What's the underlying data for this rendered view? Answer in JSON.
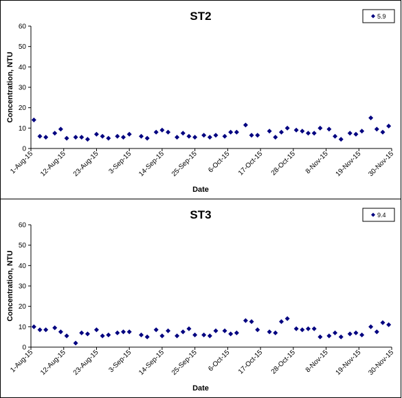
{
  "chart_data": [
    {
      "type": "scatter",
      "title": "ST2",
      "xlabel": "Date",
      "ylabel": "Concentration, NTU",
      "ylim": [
        0,
        60
      ],
      "yticks": [
        "0",
        "10",
        "20",
        "30",
        "40",
        "50",
        "60"
      ],
      "xlim": [
        "2015-08-01",
        "2015-11-30"
      ],
      "xticks": [
        "1-Aug-15",
        "12-Aug-15",
        "23-Aug-15",
        "3-Sep-15",
        "14-Sep-15",
        "25-Sep-15",
        "6-Oct-15",
        "17-Oct-15",
        "28-Oct-15",
        "8-Nov-15",
        "19-Nov-15",
        "30-Nov-15"
      ],
      "grid": false,
      "legend_position": "top-right",
      "marker_color": "#000080",
      "series": [
        {
          "name": "5.9",
          "x": [
            "2015-08-02",
            "2015-08-04",
            "2015-08-06",
            "2015-08-09",
            "2015-08-11",
            "2015-08-13",
            "2015-08-16",
            "2015-08-18",
            "2015-08-20",
            "2015-08-23",
            "2015-08-25",
            "2015-08-27",
            "2015-08-30",
            "2015-09-01",
            "2015-09-03",
            "2015-09-07",
            "2015-09-09",
            "2015-09-12",
            "2015-09-14",
            "2015-09-16",
            "2015-09-19",
            "2015-09-21",
            "2015-09-23",
            "2015-09-25",
            "2015-09-28",
            "2015-09-30",
            "2015-10-02",
            "2015-10-05",
            "2015-10-07",
            "2015-10-09",
            "2015-10-12",
            "2015-10-14",
            "2015-10-16",
            "2015-10-20",
            "2015-10-22",
            "2015-10-24",
            "2015-10-26",
            "2015-10-29",
            "2015-10-31",
            "2015-11-02",
            "2015-11-04",
            "2015-11-06",
            "2015-11-09",
            "2015-11-11",
            "2015-11-13",
            "2015-11-16",
            "2015-11-18",
            "2015-11-20",
            "2015-11-23",
            "2015-11-25",
            "2015-11-27",
            "2015-11-29"
          ],
          "y": [
            14,
            6,
            5.5,
            7.5,
            9.5,
            5,
            5.5,
            5.5,
            4.5,
            7,
            6,
            5,
            6,
            5.5,
            7,
            6,
            5,
            8,
            9,
            8,
            5.5,
            7.5,
            6,
            5.5,
            6.5,
            5.5,
            6.5,
            6,
            8,
            8,
            11.5,
            6.5,
            6.5,
            8.5,
            5.5,
            8,
            10,
            9,
            8.5,
            7.5,
            7.5,
            10,
            9.5,
            6,
            4.5,
            7.5,
            7,
            8.5,
            15,
            9.5,
            8,
            11
          ]
        }
      ]
    },
    {
      "type": "scatter",
      "title": "ST3",
      "xlabel": "Date",
      "ylabel": "Concentration, NTU",
      "ylim": [
        0,
        60
      ],
      "yticks": [
        "0",
        "10",
        "20",
        "30",
        "40",
        "50",
        "60"
      ],
      "xlim": [
        "2015-08-01",
        "2015-11-30"
      ],
      "xticks": [
        "1-Aug-15",
        "12-Aug-15",
        "23-Aug-15",
        "3-Sep-15",
        "14-Sep-15",
        "25-Sep-15",
        "6-Oct-15",
        "17-Oct-15",
        "28-Oct-15",
        "8-Nov-15",
        "19-Nov-15",
        "30-Nov-15"
      ],
      "grid": false,
      "legend_position": "top-right",
      "marker_color": "#000080",
      "series": [
        {
          "name": "9.4",
          "x": [
            "2015-08-02",
            "2015-08-04",
            "2015-08-06",
            "2015-08-09",
            "2015-08-11",
            "2015-08-13",
            "2015-08-16",
            "2015-08-18",
            "2015-08-20",
            "2015-08-23",
            "2015-08-25",
            "2015-08-27",
            "2015-08-30",
            "2015-09-01",
            "2015-09-03",
            "2015-09-07",
            "2015-09-09",
            "2015-09-12",
            "2015-09-14",
            "2015-09-16",
            "2015-09-19",
            "2015-09-21",
            "2015-09-23",
            "2015-09-25",
            "2015-09-28",
            "2015-09-30",
            "2015-10-02",
            "2015-10-05",
            "2015-10-07",
            "2015-10-09",
            "2015-10-12",
            "2015-10-14",
            "2015-10-16",
            "2015-10-20",
            "2015-10-22",
            "2015-10-24",
            "2015-10-26",
            "2015-10-29",
            "2015-10-31",
            "2015-11-02",
            "2015-11-04",
            "2015-11-06",
            "2015-11-09",
            "2015-11-11",
            "2015-11-13",
            "2015-11-16",
            "2015-11-18",
            "2015-11-20",
            "2015-11-23",
            "2015-11-25",
            "2015-11-27",
            "2015-11-29"
          ],
          "y": [
            10,
            8.5,
            8.5,
            9.5,
            7.5,
            5.5,
            2,
            7,
            6.5,
            8.5,
            5.5,
            6,
            7,
            7.5,
            7.5,
            6,
            5,
            8.5,
            5.5,
            8,
            5.5,
            7.5,
            9,
            6,
            6,
            5.5,
            8,
            8,
            6.5,
            7,
            13,
            12.5,
            8.5,
            7.5,
            7,
            12.5,
            14,
            9,
            8.5,
            9,
            9,
            5,
            5.5,
            7,
            5,
            6.5,
            7,
            6,
            10,
            7.5,
            12,
            11
          ]
        }
      ]
    }
  ]
}
